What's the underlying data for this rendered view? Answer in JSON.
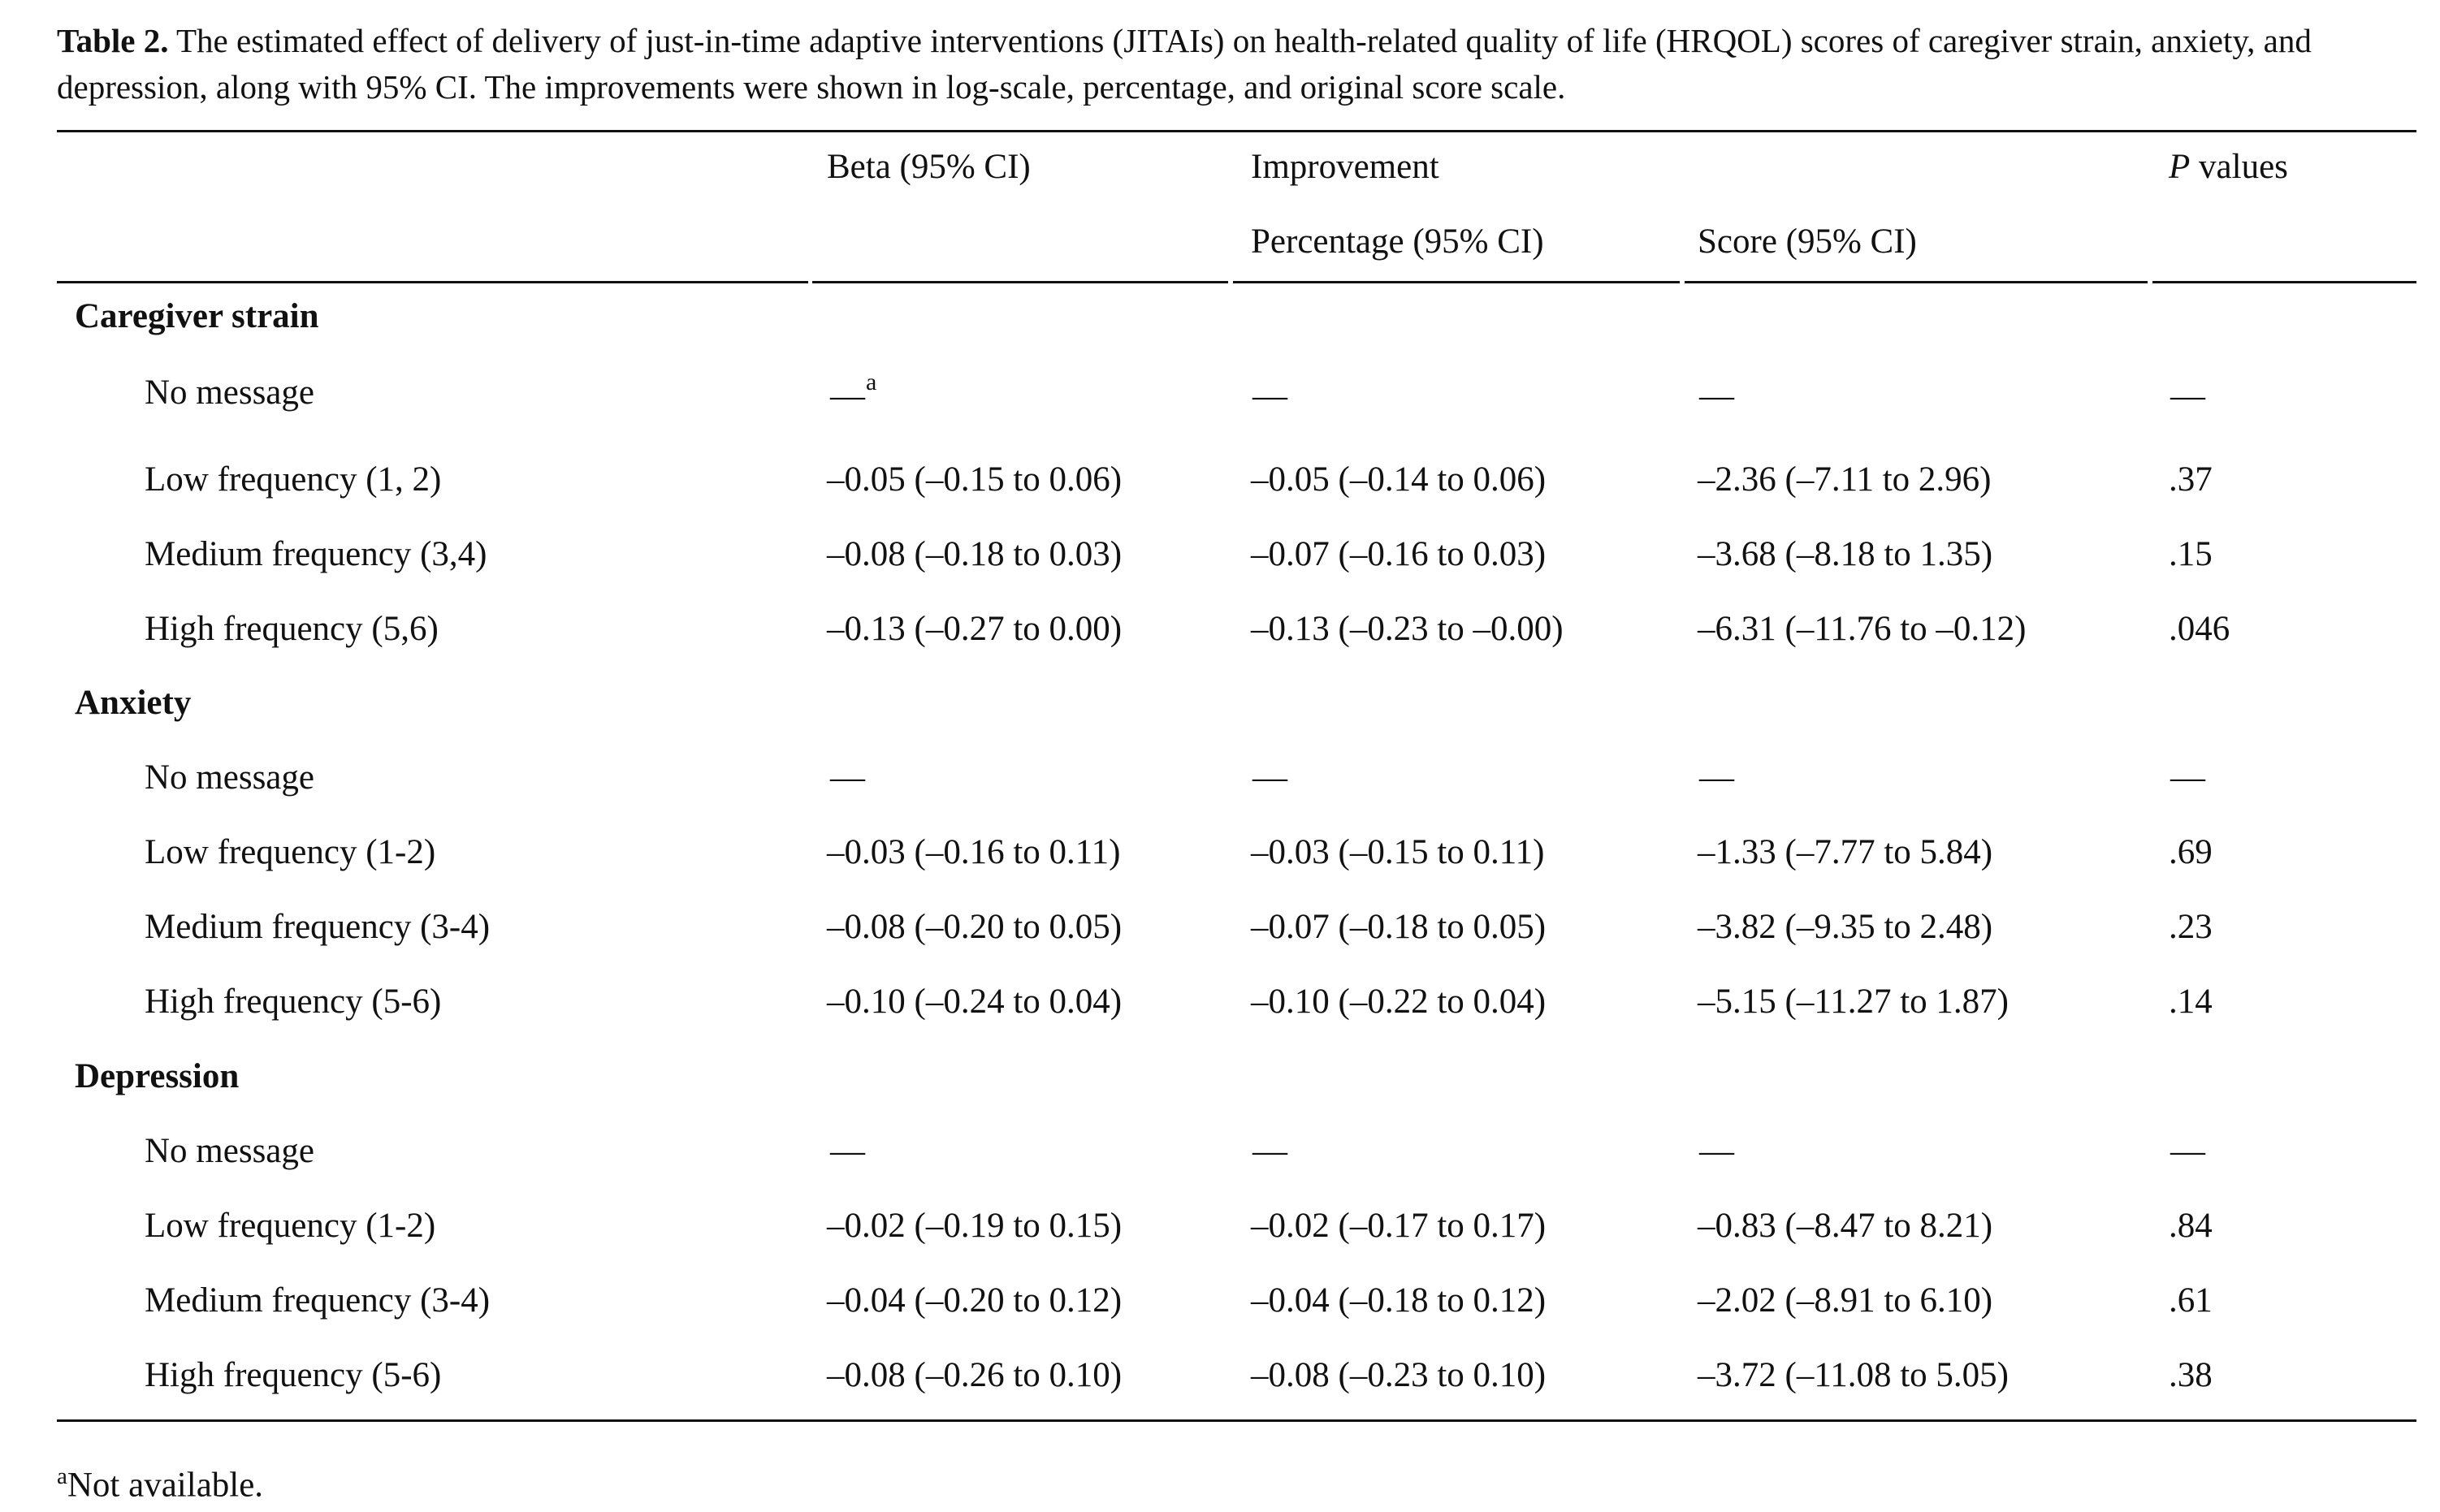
{
  "caption": {
    "label": "Table 2.",
    "text": "The estimated effect of delivery of just-in-time adaptive interventions (JITAIs) on health-related quality of life (HRQOL) scores of caregiver strain, anxiety, and depression, along with 95% CI. The improvements were shown in log-scale, percentage, and original score scale."
  },
  "header": {
    "beta": "Beta (95% CI)",
    "improvement": "Improvement",
    "percentage": "Percentage (95% CI)",
    "score": "Score (95% CI)",
    "p_italic": "P",
    "p_rest": " values"
  },
  "groups": [
    {
      "name": "Caregiver strain",
      "rows": [
        {
          "label": "No message",
          "beta": "—",
          "beta_sup": "a",
          "pct": "—",
          "score": "—",
          "p": "—"
        },
        {
          "label": "Low frequency (1, 2)",
          "beta": "–0.05 (–0.15 to 0.06)",
          "pct": "–0.05 (–0.14 to 0.06)",
          "score": "–2.36 (–7.11 to 2.96)",
          "p": ".37"
        },
        {
          "label": "Medium frequency (3,4)",
          "beta": "–0.08 (–0.18 to 0.03)",
          "pct": "–0.07 (–0.16 to 0.03)",
          "score": "–3.68 (–8.18 to 1.35)",
          "p": ".15"
        },
        {
          "label": "High frequency (5,6)",
          "beta": "–0.13 (–0.27 to 0.00)",
          "pct": "–0.13 (–0.23 to –0.00)",
          "score": "–6.31 (–11.76 to –0.12)",
          "p": ".046"
        }
      ]
    },
    {
      "name": "Anxiety",
      "rows": [
        {
          "label": "No message",
          "beta": "—",
          "pct": "—",
          "score": "—",
          "p": "—"
        },
        {
          "label": "Low frequency (1-2)",
          "beta": "–0.03 (–0.16 to 0.11)",
          "pct": "–0.03 (–0.15 to 0.11)",
          "score": "–1.33 (–7.77 to 5.84)",
          "p": ".69"
        },
        {
          "label": "Medium frequency (3-4)",
          "beta": "–0.08 (–0.20 to 0.05)",
          "pct": "–0.07 (–0.18 to 0.05)",
          "score": "–3.82 (–9.35 to 2.48)",
          "p": ".23"
        },
        {
          "label": "High frequency (5-6)",
          "beta": "–0.10 (–0.24 to 0.04)",
          "pct": "–0.10 (–0.22 to 0.04)",
          "score": "–5.15 (–11.27 to 1.87)",
          "p": ".14"
        }
      ]
    },
    {
      "name": "Depression",
      "rows": [
        {
          "label": "No message",
          "beta": "—",
          "pct": "—",
          "score": "—",
          "p": "—"
        },
        {
          "label": "Low frequency (1-2)",
          "beta": "–0.02 (–0.19 to 0.15)",
          "pct": "–0.02 (–0.17 to 0.17)",
          "score": "–0.83 (–8.47 to 8.21)",
          "p": ".84"
        },
        {
          "label": "Medium frequency (3-4)",
          "beta": "–0.04 (–0.20 to 0.12)",
          "pct": "–0.04 (–0.18 to 0.12)",
          "score": "–2.02 (–8.91 to 6.10)",
          "p": ".61"
        },
        {
          "label": "High frequency (5-6)",
          "beta": "–0.08 (–0.26 to 0.10)",
          "pct": "–0.08 (–0.23 to 0.10)",
          "score": "–3.72 (–11.08 to 5.05)",
          "p": ".38"
        }
      ]
    }
  ],
  "footnote": {
    "sup": "a",
    "text": "Not available."
  }
}
